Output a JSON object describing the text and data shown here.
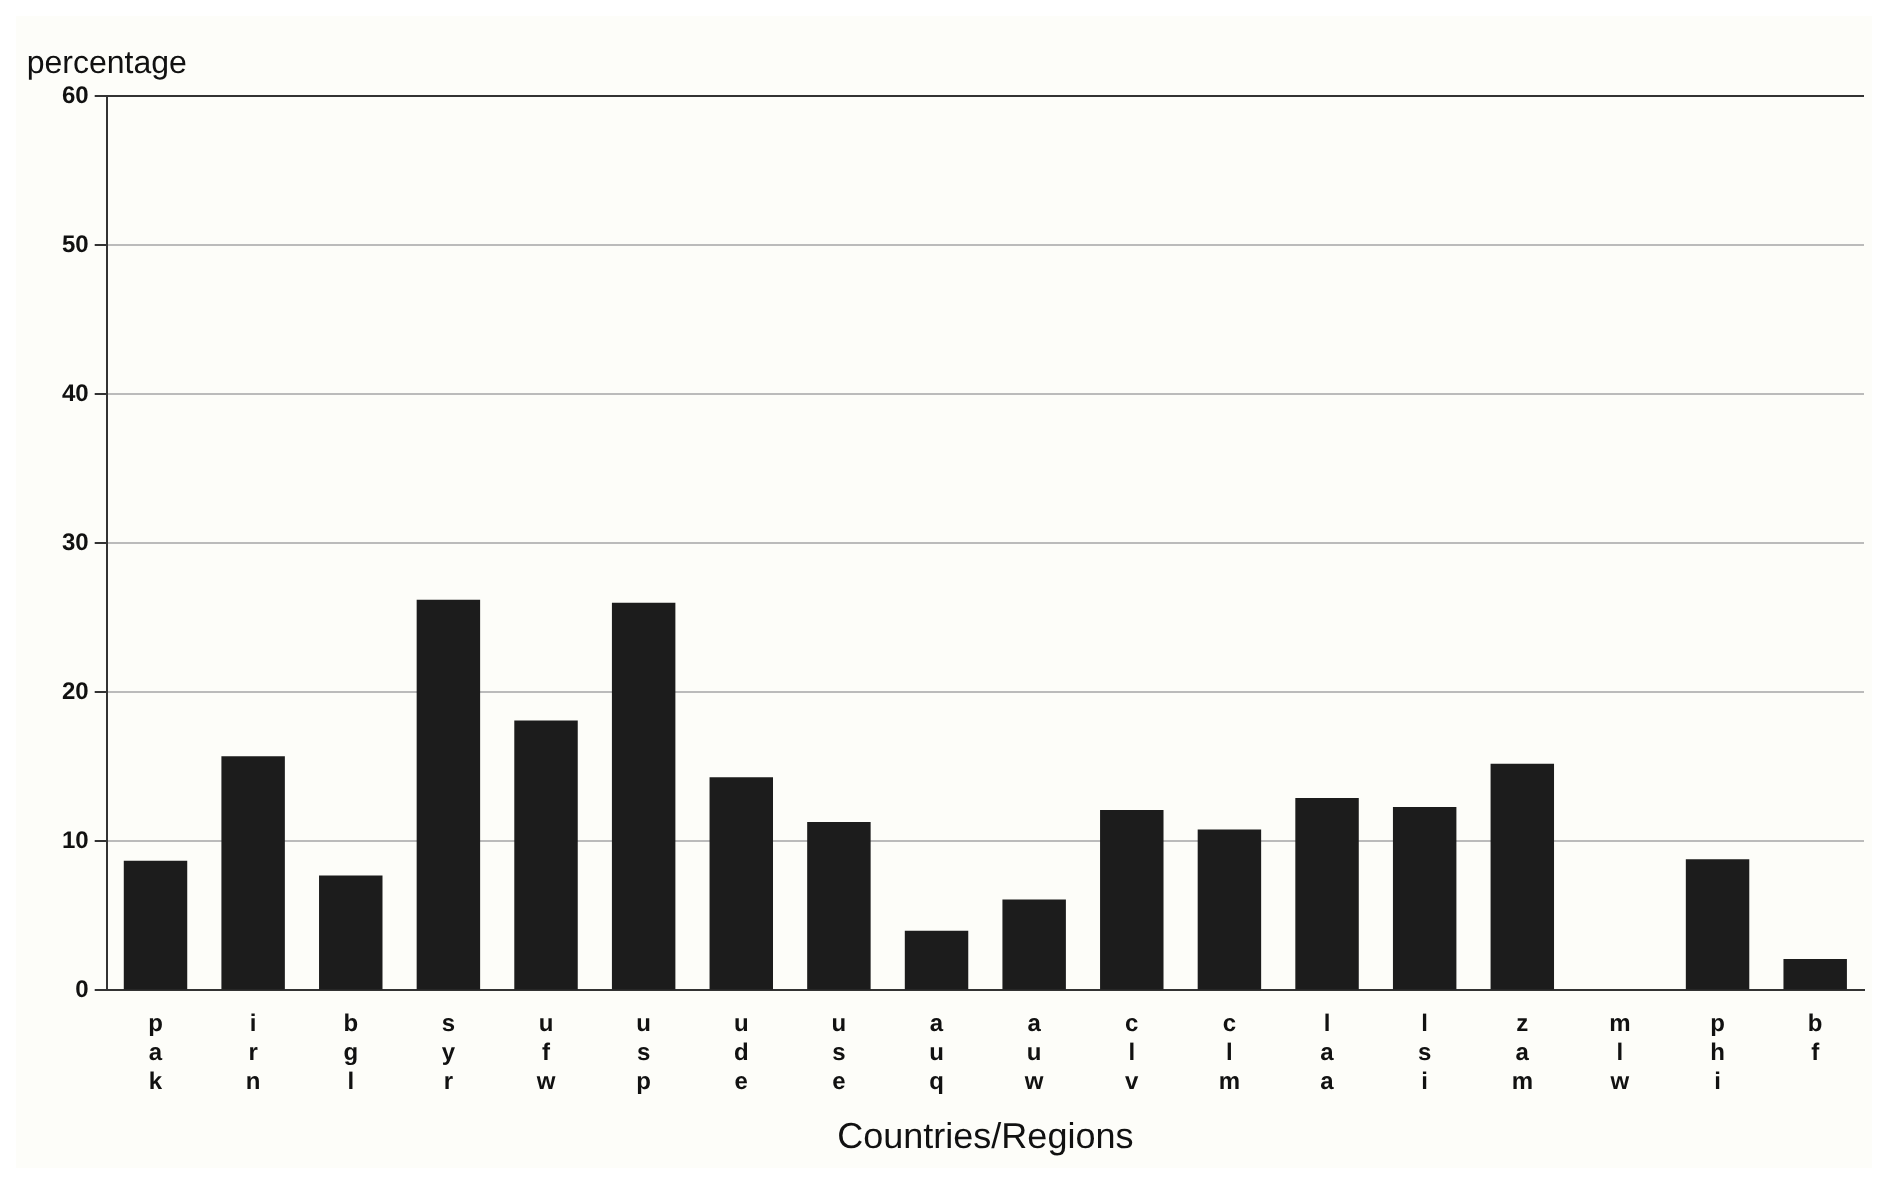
{
  "chart_data": {
    "type": "bar",
    "xlabel": "Countries/Regions",
    "ylabel": "percentage",
    "categories": [
      "pak",
      "irn",
      "bgl",
      "syr",
      "ufw",
      "usp",
      "ude",
      "use",
      "auq",
      "auw",
      "clv",
      "clm",
      "laa",
      "lsi",
      "zam",
      "mlw",
      "phi",
      "bf"
    ],
    "values": [
      8.7,
      15.7,
      7.7,
      26.2,
      18.1,
      26,
      14.3,
      11.3,
      4,
      6.1,
      12.1,
      10.8,
      12.9,
      12.3,
      15.2,
      0,
      8.8,
      2.1
    ],
    "color": "#1c1c1c",
    "ylim": [
      0,
      60
    ],
    "yticks": [
      0,
      10,
      20,
      30,
      40,
      50,
      60
    ],
    "grid": "y",
    "legend": false
  }
}
